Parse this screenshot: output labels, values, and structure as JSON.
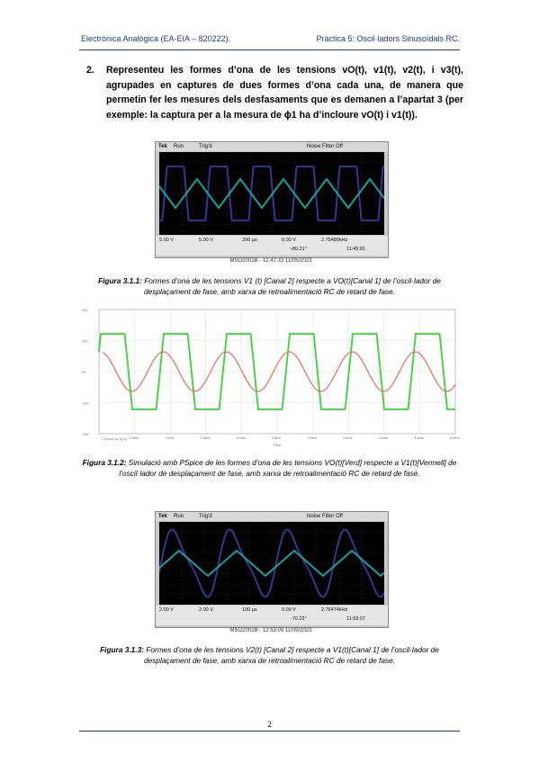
{
  "header": {
    "left": "Electrònica Analògica (EA-EIA – 820222).",
    "right": "Pràctica 5: Oscil·ladors Sinusoïdals RC."
  },
  "item": {
    "number": "2.",
    "text": "Representeu les formes d’ona de les tensions vO(t), v1(t), v2(t), i v3(t), agrupades en captures de dues formes d’ona cada una, de manera que permetin fer les mesures dels desfasaments que es demanen a l’apartat 3 (per exemple: la captura per a la mesura de ϕ1 ha d’incloure vO(t) i v1(t))."
  },
  "scope1": {
    "brand": "Tek",
    "state": "Run",
    "trig": "Trig'd",
    "filter": "Noise Filter Off",
    "ch1_scale": "5.00 V",
    "ch2_scale": "5.00 V",
    "timebase": "200 µs",
    "trig_level": "0.00 V",
    "freq": "2.75489kHz",
    "meas": "-80.21°",
    "time_rd": "11:45:01",
    "footer": "MSO2002B - 12:47:33  11/05/2023"
  },
  "caption1": {
    "label": "Figura 3.1.1:",
    "text": "Formes d’ona de les tensions V1 (t) [Canal 2] respecte a VO(t)[Canal 1] de l’oscil·lador de desplaçament de fase, amb xarxa de retroalimentació RC de retard de fase."
  },
  "pspice": {
    "y_ticks": [
      "20V",
      "10V",
      "0V",
      "-10V",
      "-20V"
    ],
    "x_ticks": [
      "0.5ms",
      "1.0ms",
      "1.5ms",
      "2.0ms",
      "2.5ms",
      "3.0ms",
      "3.5ms",
      "4.0ms",
      "4.5ms",
      "5.0ms"
    ],
    "x_label": "Time",
    "legend": "□ V(Vout)  ▲ V(V1)"
  },
  "caption2": {
    "label": "Figura 3.1.2:",
    "text": "Simulació amb PSpice de les formes d’ona de les tensions VO(t)[Verd] respecte a V1(t)[Vermell] de l’oscil·lador de desplaçament de fase, amb xarxa de retroalimentació RC de retard de fase."
  },
  "scope2": {
    "brand": "Tek",
    "state": "Run",
    "trig": "Trig'd",
    "filter": "Noise Filter Off",
    "ch1_scale": "2.00 V",
    "ch2_scale": "2.00 V",
    "timebase": "100 µs",
    "trig_level": "0.00 V",
    "freq": "2.76474kHz",
    "meas": "-70.22°",
    "time_rd": "11:53:07",
    "footer": "MSO2002B - 12:53:09  11/05/2023"
  },
  "caption3": {
    "label": "Figura 3.1.3:",
    "text": "Formes d’ona de les tensions V2(t) [Canal 2] respecte a V1(t)[Canal 1] de l’oscil·lador de desplaçament de fase, amb xarxa de retroalimentació RC de retard de fase."
  },
  "page": {
    "number": "2"
  },
  "colors": {
    "header": "#1f3a8a",
    "trace_blue": "#3a3aa0",
    "trace_teal": "#1e9e9a",
    "pspice_green": "#39d13a",
    "pspice_red": "#e86a5e"
  }
}
